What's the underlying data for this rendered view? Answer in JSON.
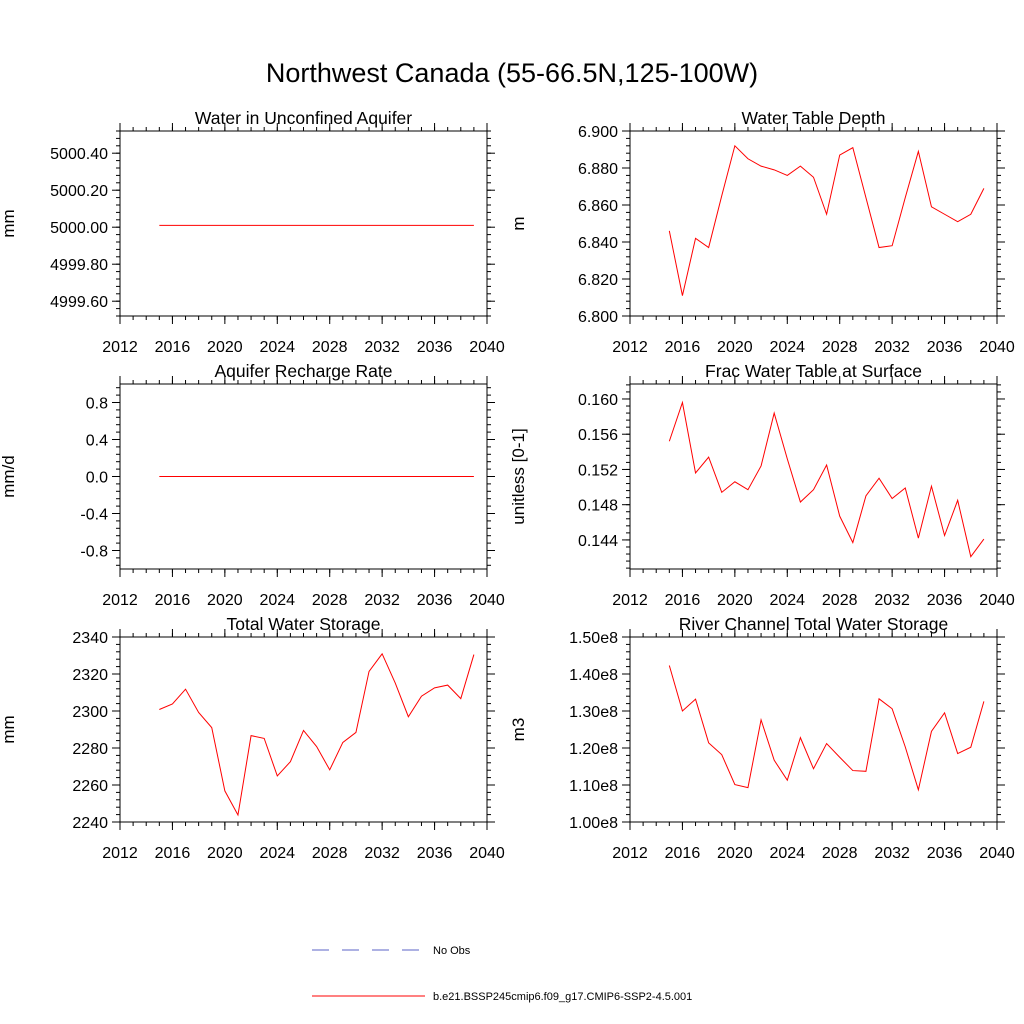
{
  "figure": {
    "title": "Northwest Canada (55-66.5N,125-100W)"
  },
  "legend": {
    "entries": [
      {
        "label": "No Obs",
        "color": "#5b63c7",
        "dashed": true
      },
      {
        "label": "b.e21.BSSP245cmip6.f09_g17.CMIP6-SSP2-4.5.001",
        "color": "#ff0000",
        "dashed": false
      }
    ]
  },
  "colors": {
    "series": "#ff0000",
    "axis": "#000000"
  },
  "chart_data": [
    {
      "type": "line",
      "title": "Water in Unconfined Aquifer",
      "xlabel": "",
      "ylabel": "mm",
      "xlim": [
        2012,
        2040
      ],
      "ylim": [
        4999.52,
        5000.52
      ],
      "xticks": [
        2012,
        2016,
        2020,
        2024,
        2028,
        2032,
        2036,
        2040
      ],
      "xtick_labels": [
        "2012",
        "2016",
        "2020",
        "2024",
        "2028",
        "2032",
        "2036",
        "2040"
      ],
      "yticks": [
        4999.6,
        4999.8,
        5000.0,
        5000.2,
        5000.4
      ],
      "ytick_labels": [
        "4999.60",
        "4999.80",
        "5000.00",
        "5000.20",
        "5000.40"
      ],
      "minor_y_step": 0.04,
      "grid": false,
      "series": [
        {
          "x": [
            2015,
            2039
          ],
          "values": [
            5000.01,
            5000.01
          ]
        }
      ]
    },
    {
      "type": "line",
      "title": "Water Table Depth",
      "xlabel": "",
      "ylabel": "m",
      "xlim": [
        2012,
        2040
      ],
      "ylim": [
        6.8,
        6.9
      ],
      "xticks": [
        2012,
        2016,
        2020,
        2024,
        2028,
        2032,
        2036,
        2040
      ],
      "xtick_labels": [
        "2012",
        "2016",
        "2020",
        "2024",
        "2028",
        "2032",
        "2036",
        "2040"
      ],
      "yticks": [
        6.8,
        6.82,
        6.84,
        6.86,
        6.88,
        6.9
      ],
      "ytick_labels": [
        "6.800",
        "6.820",
        "6.840",
        "6.860",
        "6.880",
        "6.900"
      ],
      "minor_y_step": 0.004,
      "grid": false,
      "series": [
        {
          "x": [
            2015,
            2016,
            2017,
            2018,
            2019,
            2020,
            2021,
            2022,
            2023,
            2024,
            2025,
            2026,
            2027,
            2028,
            2029,
            2030,
            2031,
            2032,
            2033,
            2034,
            2035,
            2036,
            2037,
            2038,
            2039
          ],
          "values": [
            6.846,
            6.811,
            6.842,
            6.837,
            6.865,
            6.892,
            6.885,
            6.881,
            6.879,
            6.876,
            6.881,
            6.875,
            6.855,
            6.887,
            6.891,
            6.864,
            6.837,
            6.838,
            6.864,
            6.889,
            6.859,
            6.855,
            6.851,
            6.855,
            6.869
          ]
        }
      ]
    },
    {
      "type": "line",
      "title": "Aquifer Recharge Rate",
      "xlabel": "",
      "ylabel": "mm/d",
      "xlim": [
        2012,
        2040
      ],
      "ylim": [
        -1.0,
        1.0
      ],
      "xticks": [
        2012,
        2016,
        2020,
        2024,
        2028,
        2032,
        2036,
        2040
      ],
      "xtick_labels": [
        "2012",
        "2016",
        "2020",
        "2024",
        "2028",
        "2032",
        "2036",
        "2040"
      ],
      "yticks": [
        -0.8,
        -0.4,
        0.0,
        0.4,
        0.8
      ],
      "ytick_labels": [
        "-0.8",
        "-0.4",
        "0.0",
        "0.4",
        "0.8"
      ],
      "minor_y_step": 0.08,
      "grid": false,
      "series": [
        {
          "x": [
            2015,
            2039
          ],
          "values": [
            0.0,
            0.0
          ]
        }
      ]
    },
    {
      "type": "line",
      "title": "Frac Water Table at Surface",
      "xlabel": "",
      "ylabel": "unitless [0-1]",
      "xlim": [
        2012,
        2040
      ],
      "ylim": [
        0.1407,
        0.1617
      ],
      "xticks": [
        2012,
        2016,
        2020,
        2024,
        2028,
        2032,
        2036,
        2040
      ],
      "xtick_labels": [
        "2012",
        "2016",
        "2020",
        "2024",
        "2028",
        "2032",
        "2036",
        "2040"
      ],
      "yticks": [
        0.144,
        0.148,
        0.152,
        0.156,
        0.16
      ],
      "ytick_labels": [
        "0.144",
        "0.148",
        "0.152",
        "0.156",
        "0.160"
      ],
      "minor_y_step": 0.0008,
      "grid": false,
      "series": [
        {
          "x": [
            2015,
            2016,
            2017,
            2018,
            2019,
            2020,
            2021,
            2022,
            2023,
            2024,
            2025,
            2026,
            2027,
            2028,
            2029,
            2030,
            2031,
            2032,
            2033,
            2034,
            2035,
            2036,
            2037,
            2038,
            2039
          ],
          "values": [
            0.1552,
            0.1596,
            0.1516,
            0.1534,
            0.1494,
            0.1506,
            0.1497,
            0.1524,
            0.1584,
            0.1532,
            0.1483,
            0.1497,
            0.1525,
            0.1467,
            0.1437,
            0.149,
            0.151,
            0.1487,
            0.1499,
            0.1442,
            0.1501,
            0.1445,
            0.1485,
            0.1421,
            0.1441
          ]
        }
      ]
    },
    {
      "type": "line",
      "title": "Total Water Storage",
      "xlabel": "",
      "ylabel": "mm",
      "xlim": [
        2012,
        2040
      ],
      "ylim": [
        2240,
        2340
      ],
      "xticks": [
        2012,
        2016,
        2020,
        2024,
        2028,
        2032,
        2036,
        2040
      ],
      "xtick_labels": [
        "2012",
        "2016",
        "2020",
        "2024",
        "2028",
        "2032",
        "2036",
        "2040"
      ],
      "yticks": [
        2240,
        2260,
        2280,
        2300,
        2320,
        2340
      ],
      "ytick_labels": [
        "2240",
        "2260",
        "2280",
        "2300",
        "2320",
        "2340"
      ],
      "minor_y_step": 4,
      "grid": false,
      "series": [
        {
          "x": [
            2015,
            2016,
            2017,
            2018,
            2019,
            2020,
            2021,
            2022,
            2023,
            2024,
            2025,
            2026,
            2027,
            2028,
            2029,
            2030,
            2031,
            2032,
            2033,
            2034,
            2035,
            2036,
            2037,
            2038,
            2039
          ],
          "values": [
            2300.8,
            2303.8,
            2311.8,
            2299.2,
            2291.0,
            2256.8,
            2243.8,
            2286.7,
            2285.2,
            2264.9,
            2272.6,
            2289.5,
            2280.8,
            2268.2,
            2283.0,
            2288.4,
            2321.4,
            2330.9,
            2315.1,
            2296.9,
            2308.0,
            2312.5,
            2314.0,
            2306.7,
            2330.5
          ]
        }
      ]
    },
    {
      "type": "line",
      "title": "River Channel Total Water Storage",
      "xlabel": "",
      "ylabel": "m3",
      "xlim": [
        2012,
        2040
      ],
      "ylim": [
        100000000,
        150000000
      ],
      "xticks": [
        2012,
        2016,
        2020,
        2024,
        2028,
        2032,
        2036,
        2040
      ],
      "xtick_labels": [
        "2012",
        "2016",
        "2020",
        "2024",
        "2028",
        "2032",
        "2036",
        "2040"
      ],
      "yticks": [
        100000000,
        110000000,
        120000000,
        130000000,
        140000000,
        150000000
      ],
      "ytick_labels": [
        "1.00e8",
        "1.10e8",
        "1.20e8",
        "1.30e8",
        "1.40e8",
        "1.50e8"
      ],
      "minor_y_step": 2000000,
      "grid": false,
      "series": [
        {
          "x": [
            2015,
            2016,
            2017,
            2018,
            2019,
            2020,
            2021,
            2022,
            2023,
            2024,
            2025,
            2026,
            2027,
            2028,
            2029,
            2030,
            2031,
            2032,
            2033,
            2034,
            2035,
            2036,
            2037,
            2038,
            2039
          ],
          "values": [
            142300000,
            130000000,
            133200000,
            121400000,
            118200000,
            110100000,
            109300000,
            127600000,
            116700000,
            111300000,
            122800000,
            114400000,
            121200000,
            117500000,
            113900000,
            113700000,
            133300000,
            130600000,
            120300000,
            108700000,
            124500000,
            129500000,
            118500000,
            120200000,
            132600000
          ]
        }
      ]
    }
  ]
}
